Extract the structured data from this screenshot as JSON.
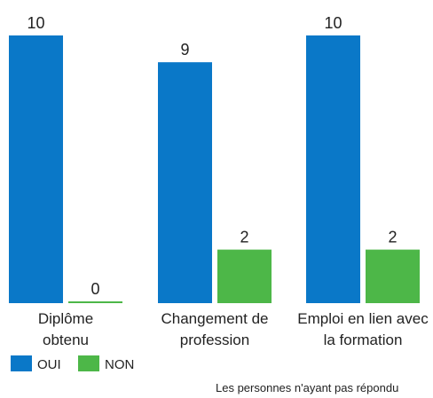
{
  "chart_data": {
    "type": "bar",
    "categories": [
      "Diplôme obtenu",
      "Changement de profession",
      "Emploi en lien avec la formation"
    ],
    "series": [
      {
        "name": "OUI",
        "color": "#0a78c8",
        "values": [
          10,
          9,
          10
        ]
      },
      {
        "name": "NON",
        "color": "#4db748",
        "values": [
          0,
          2,
          2
        ]
      }
    ],
    "footnote": "Les personnes n'ayant pas répondu"
  }
}
